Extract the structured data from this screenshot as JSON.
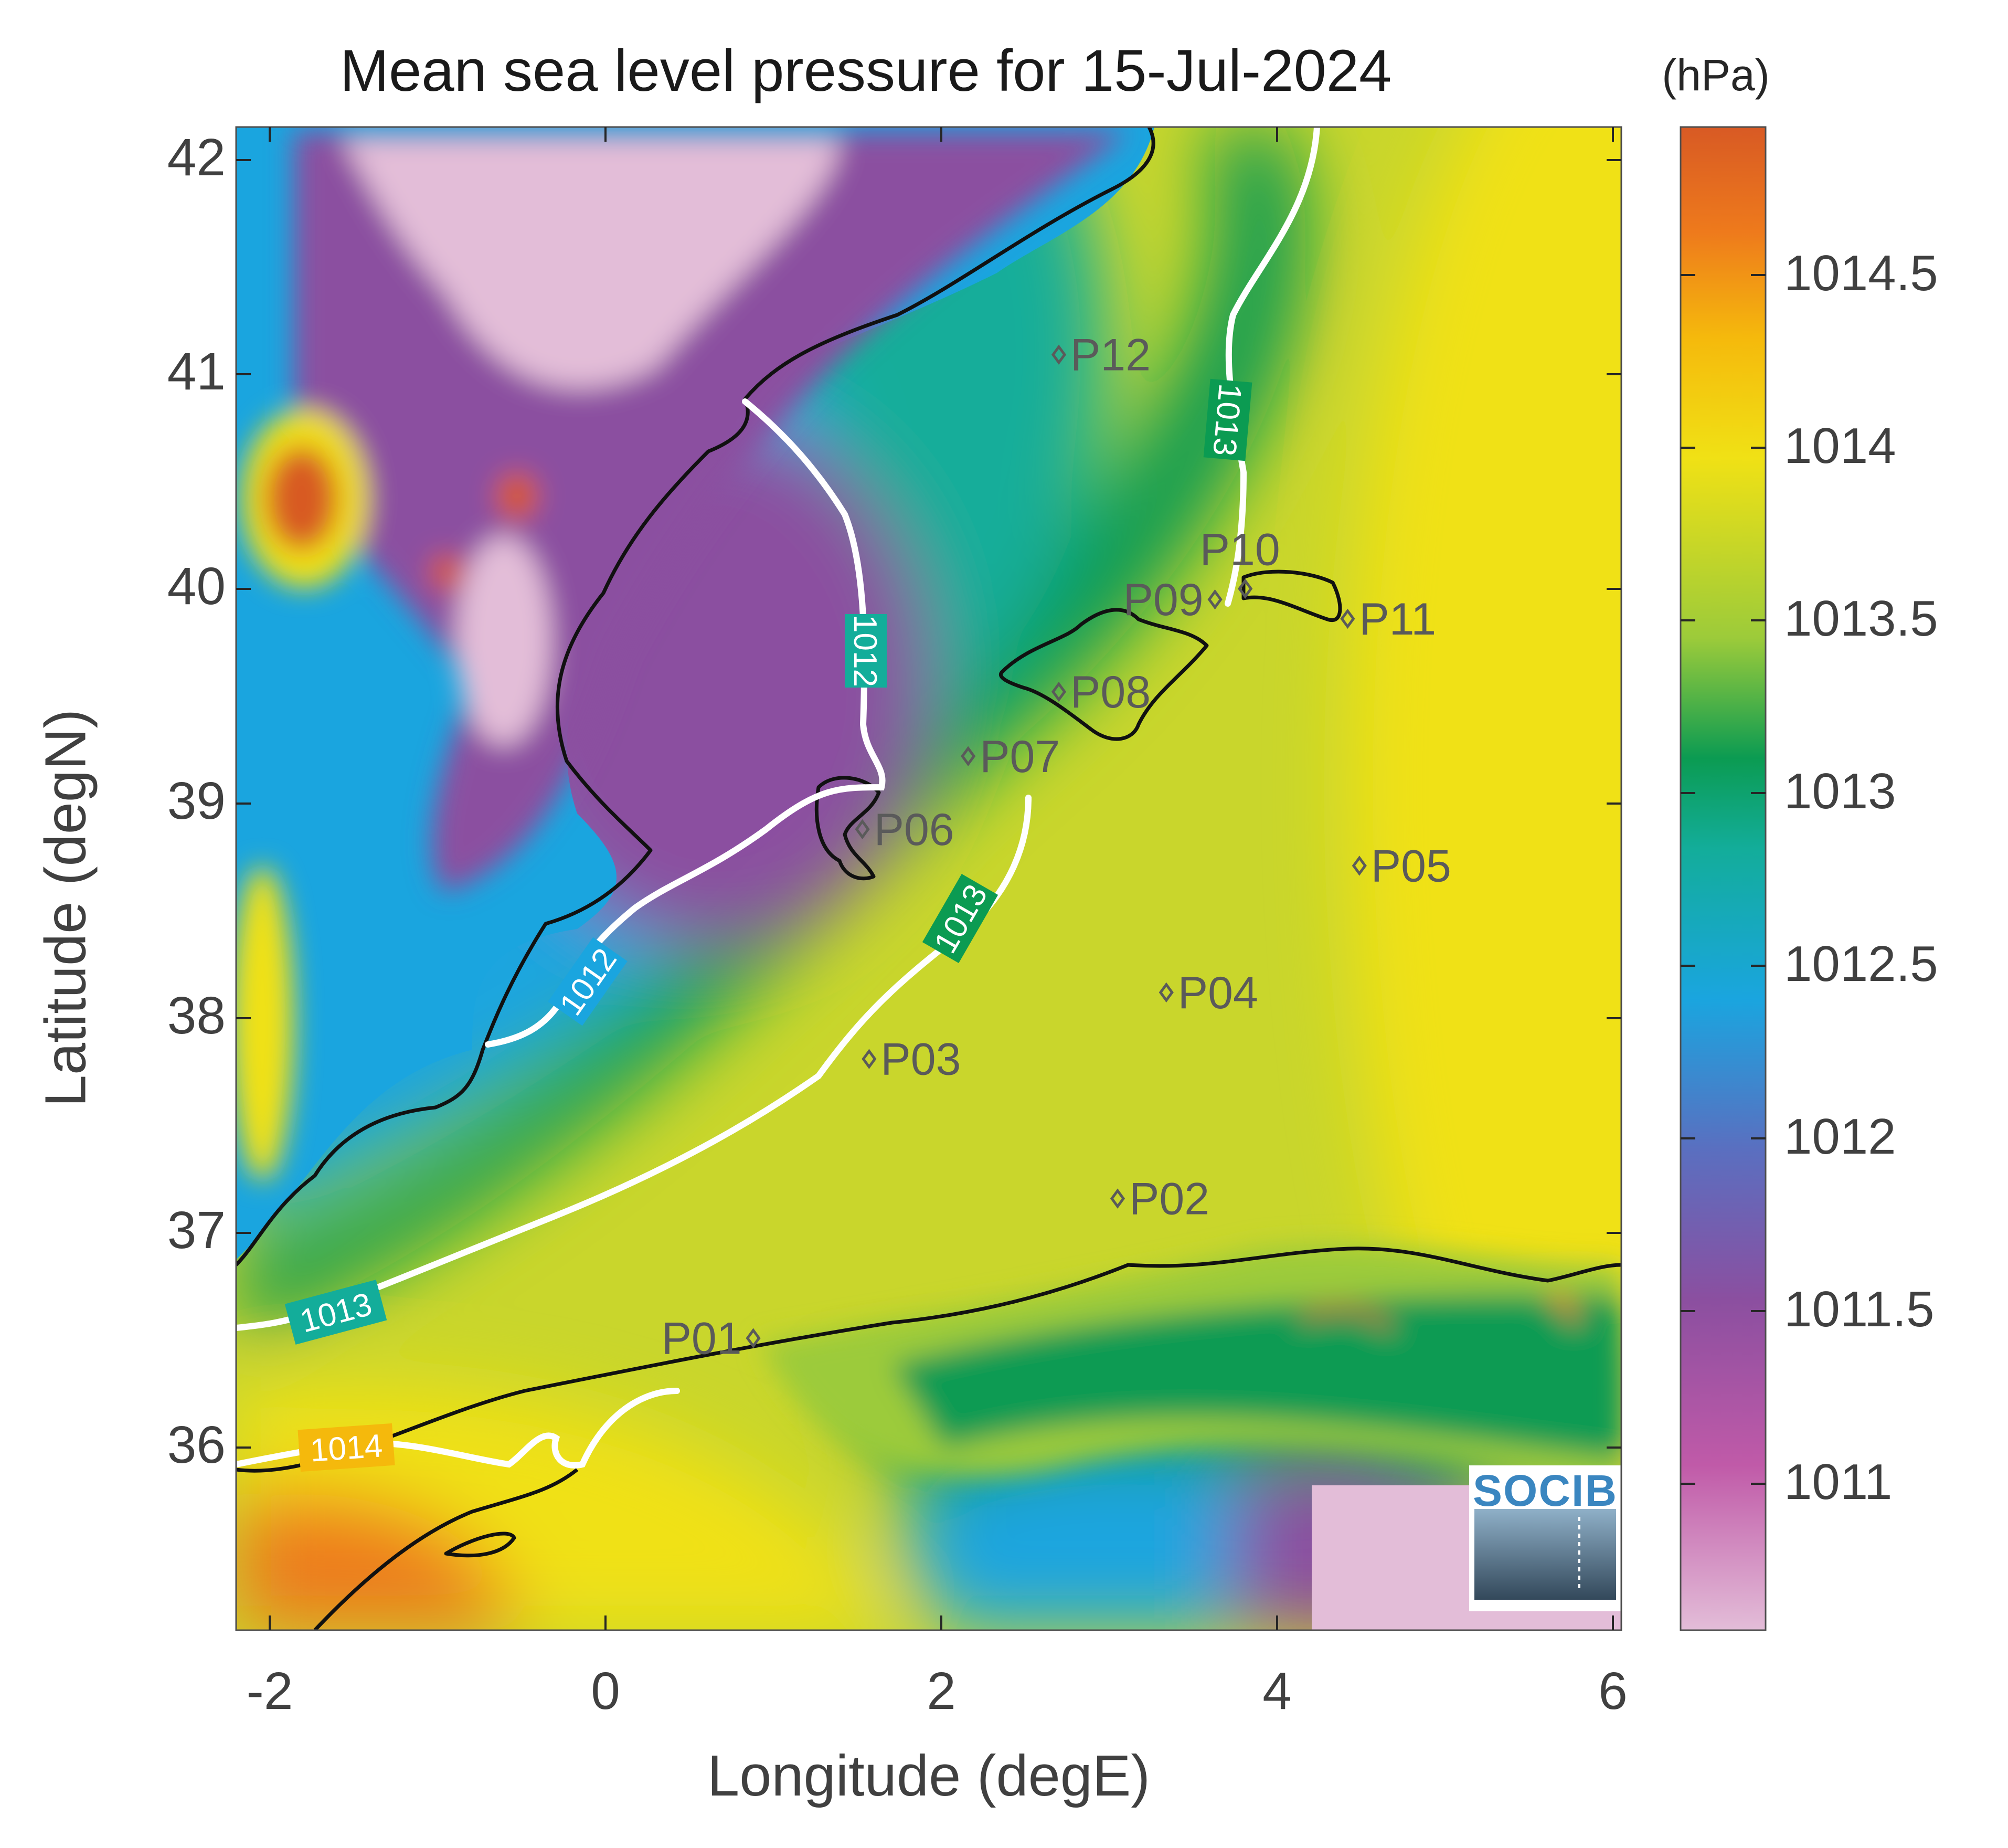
{
  "title": "Mean sea level pressure for 15-Jul-2024",
  "colorbar": {
    "units_label": "(hPa)",
    "tick_labels": [
      "1014.5",
      "1014",
      "1013.5",
      "1013",
      "1012.5",
      "1012",
      "1011.5",
      "1011"
    ],
    "range": [
      1010.55,
      1014.9
    ],
    "colors": [
      "#e3bdd8",
      "#c05aa8",
      "#8b4fa0",
      "#5a6fc0",
      "#1aa5df",
      "#13ad9a",
      "#0b9b52",
      "#9ccb3a",
      "#f0e115",
      "#f5b90c",
      "#ee7a1c",
      "#d85a24"
    ]
  },
  "axes": {
    "xlabel": "Longitude (degE)",
    "ylabel": "Latitude (degN)",
    "x_tick_labels": [
      "-2",
      "0",
      "2",
      "4",
      "6"
    ],
    "y_tick_labels": [
      "42",
      "41",
      "40",
      "39",
      "38",
      "37",
      "36"
    ],
    "xlim": [
      -2.2,
      6.05
    ],
    "ylim": [
      35.15,
      42.15
    ]
  },
  "contours": [
    {
      "label": "1012"
    },
    {
      "label": "1013"
    },
    {
      "label": "1014"
    }
  ],
  "stations": [
    {
      "name": "P01",
      "lon": 0.88,
      "lat": 36.51
    },
    {
      "name": "P02",
      "lon": 3.05,
      "lat": 37.16
    },
    {
      "name": "P03",
      "lon": 1.57,
      "lat": 37.81
    },
    {
      "name": "P04",
      "lon": 3.34,
      "lat": 38.12
    },
    {
      "name": "P05",
      "lon": 4.49,
      "lat": 38.71
    },
    {
      "name": "P06",
      "lon": 1.53,
      "lat": 38.88
    },
    {
      "name": "P07",
      "lon": 2.16,
      "lat": 39.22
    },
    {
      "name": "P08",
      "lon": 2.7,
      "lat": 39.52
    },
    {
      "name": "P09",
      "lon": 3.63,
      "lat": 39.95
    },
    {
      "name": "P10",
      "lon": 3.81,
      "lat": 40.0
    },
    {
      "name": "P11",
      "lon": 4.42,
      "lat": 39.86
    },
    {
      "name": "P12",
      "lon": 2.7,
      "lat": 41.09
    }
  ],
  "logo": {
    "text": "SOCIB"
  }
}
